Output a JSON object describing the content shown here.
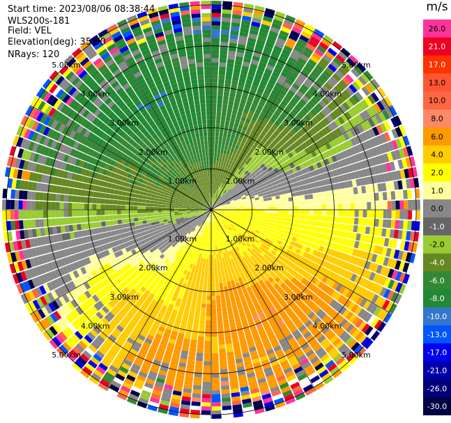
{
  "header": {
    "start_time": "Start time: 2023/08/06 08:38:44",
    "instrument": "WLS200s-181",
    "field": "Field: VEL",
    "elevation": "Elevation(deg): 35.30",
    "nrays": "NRays: 120"
  },
  "colorbar": {
    "unit": "m/s",
    "levels": [
      {
        "label": "26.0",
        "color": "#ff3399"
      },
      {
        "label": "21.0",
        "color": "#ee0022"
      },
      {
        "label": "17.0",
        "color": "#ff3300"
      },
      {
        "label": "13.0",
        "color": "#ff5533"
      },
      {
        "label": "10.0",
        "color": "#ff6644"
      },
      {
        "label": "8.0",
        "color": "#ff8866"
      },
      {
        "label": "6.0",
        "color": "#ff9900"
      },
      {
        "label": "4.0",
        "color": "#ffcc00"
      },
      {
        "label": "2.0",
        "color": "#ffff00"
      },
      {
        "label": "1.0",
        "color": "#ffff99"
      },
      {
        "label": "0.0",
        "color": "#888888"
      },
      {
        "label": "-1.0",
        "color": "#666666"
      },
      {
        "label": "-2.0",
        "color": "#99cc33"
      },
      {
        "label": "-4.0",
        "color": "#668822"
      },
      {
        "label": "-6.0",
        "color": "#338833"
      },
      {
        "label": "-8.0",
        "color": "#228833"
      },
      {
        "label": "-10.0",
        "color": "#3377cc"
      },
      {
        "label": "-13.0",
        "color": "#0055ff"
      },
      {
        "label": "-17.0",
        "color": "#0000ee"
      },
      {
        "label": "-21.0",
        "color": "#0000aa"
      },
      {
        "label": "-26.0",
        "color": "#000077"
      },
      {
        "label": "-30.0",
        "color": "#000044"
      }
    ]
  },
  "chart_data": {
    "type": "heatmap",
    "projection": "polar PPI (plan position indicator)",
    "field": "VEL",
    "unit": "m/s",
    "n_rays": 120,
    "elevation_deg": 35.3,
    "range_rings_km": [
      1.0,
      2.0,
      3.0,
      4.0,
      5.0
    ],
    "ring_labels": [
      "1.00km",
      "2.00km",
      "3.00km",
      "4.00km",
      "5.00km"
    ],
    "color_scale_min": -30.0,
    "color_scale_max": 26.0,
    "pattern_summary": {
      "north_half_velocity_ms": [
        -10,
        -1
      ],
      "south_half_velocity_ms": [
        1,
        8
      ],
      "outer_ranges": "noisy / multicolored beyond about 4.5 km"
    }
  }
}
